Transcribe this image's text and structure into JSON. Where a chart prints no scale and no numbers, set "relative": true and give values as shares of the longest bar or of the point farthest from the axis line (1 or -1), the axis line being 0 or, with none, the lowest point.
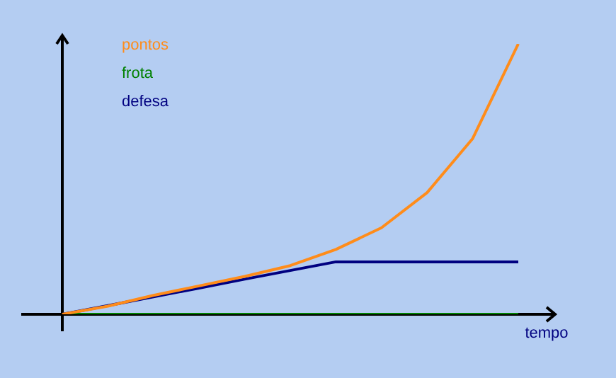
{
  "chart_data": {
    "type": "line",
    "relative": true,
    "xlabel": "tempo",
    "marker": "none",
    "line_style": "solid",
    "categories": [
      null,
      null,
      null,
      null,
      null,
      null,
      null,
      null,
      null,
      null,
      null
    ],
    "series": [
      {
        "name": "pontos",
        "color": "#ff8c1a",
        "values": [
          0,
          0.03,
          0.07,
          0.105,
          0.14,
          0.18,
          0.24,
          0.32,
          0.45,
          0.65,
          1
        ]
      },
      {
        "name": "frota",
        "color": "#008000",
        "values": [
          0,
          0,
          0,
          0,
          0,
          0,
          0,
          0,
          0,
          0,
          0
        ]
      },
      {
        "name": "defesa",
        "color": "#000080",
        "values": [
          0,
          0.032,
          0.065,
          0.097,
          0.13,
          0.162,
          0.194,
          0.194,
          0.194,
          0.194,
          0.194
        ]
      }
    ]
  }
}
